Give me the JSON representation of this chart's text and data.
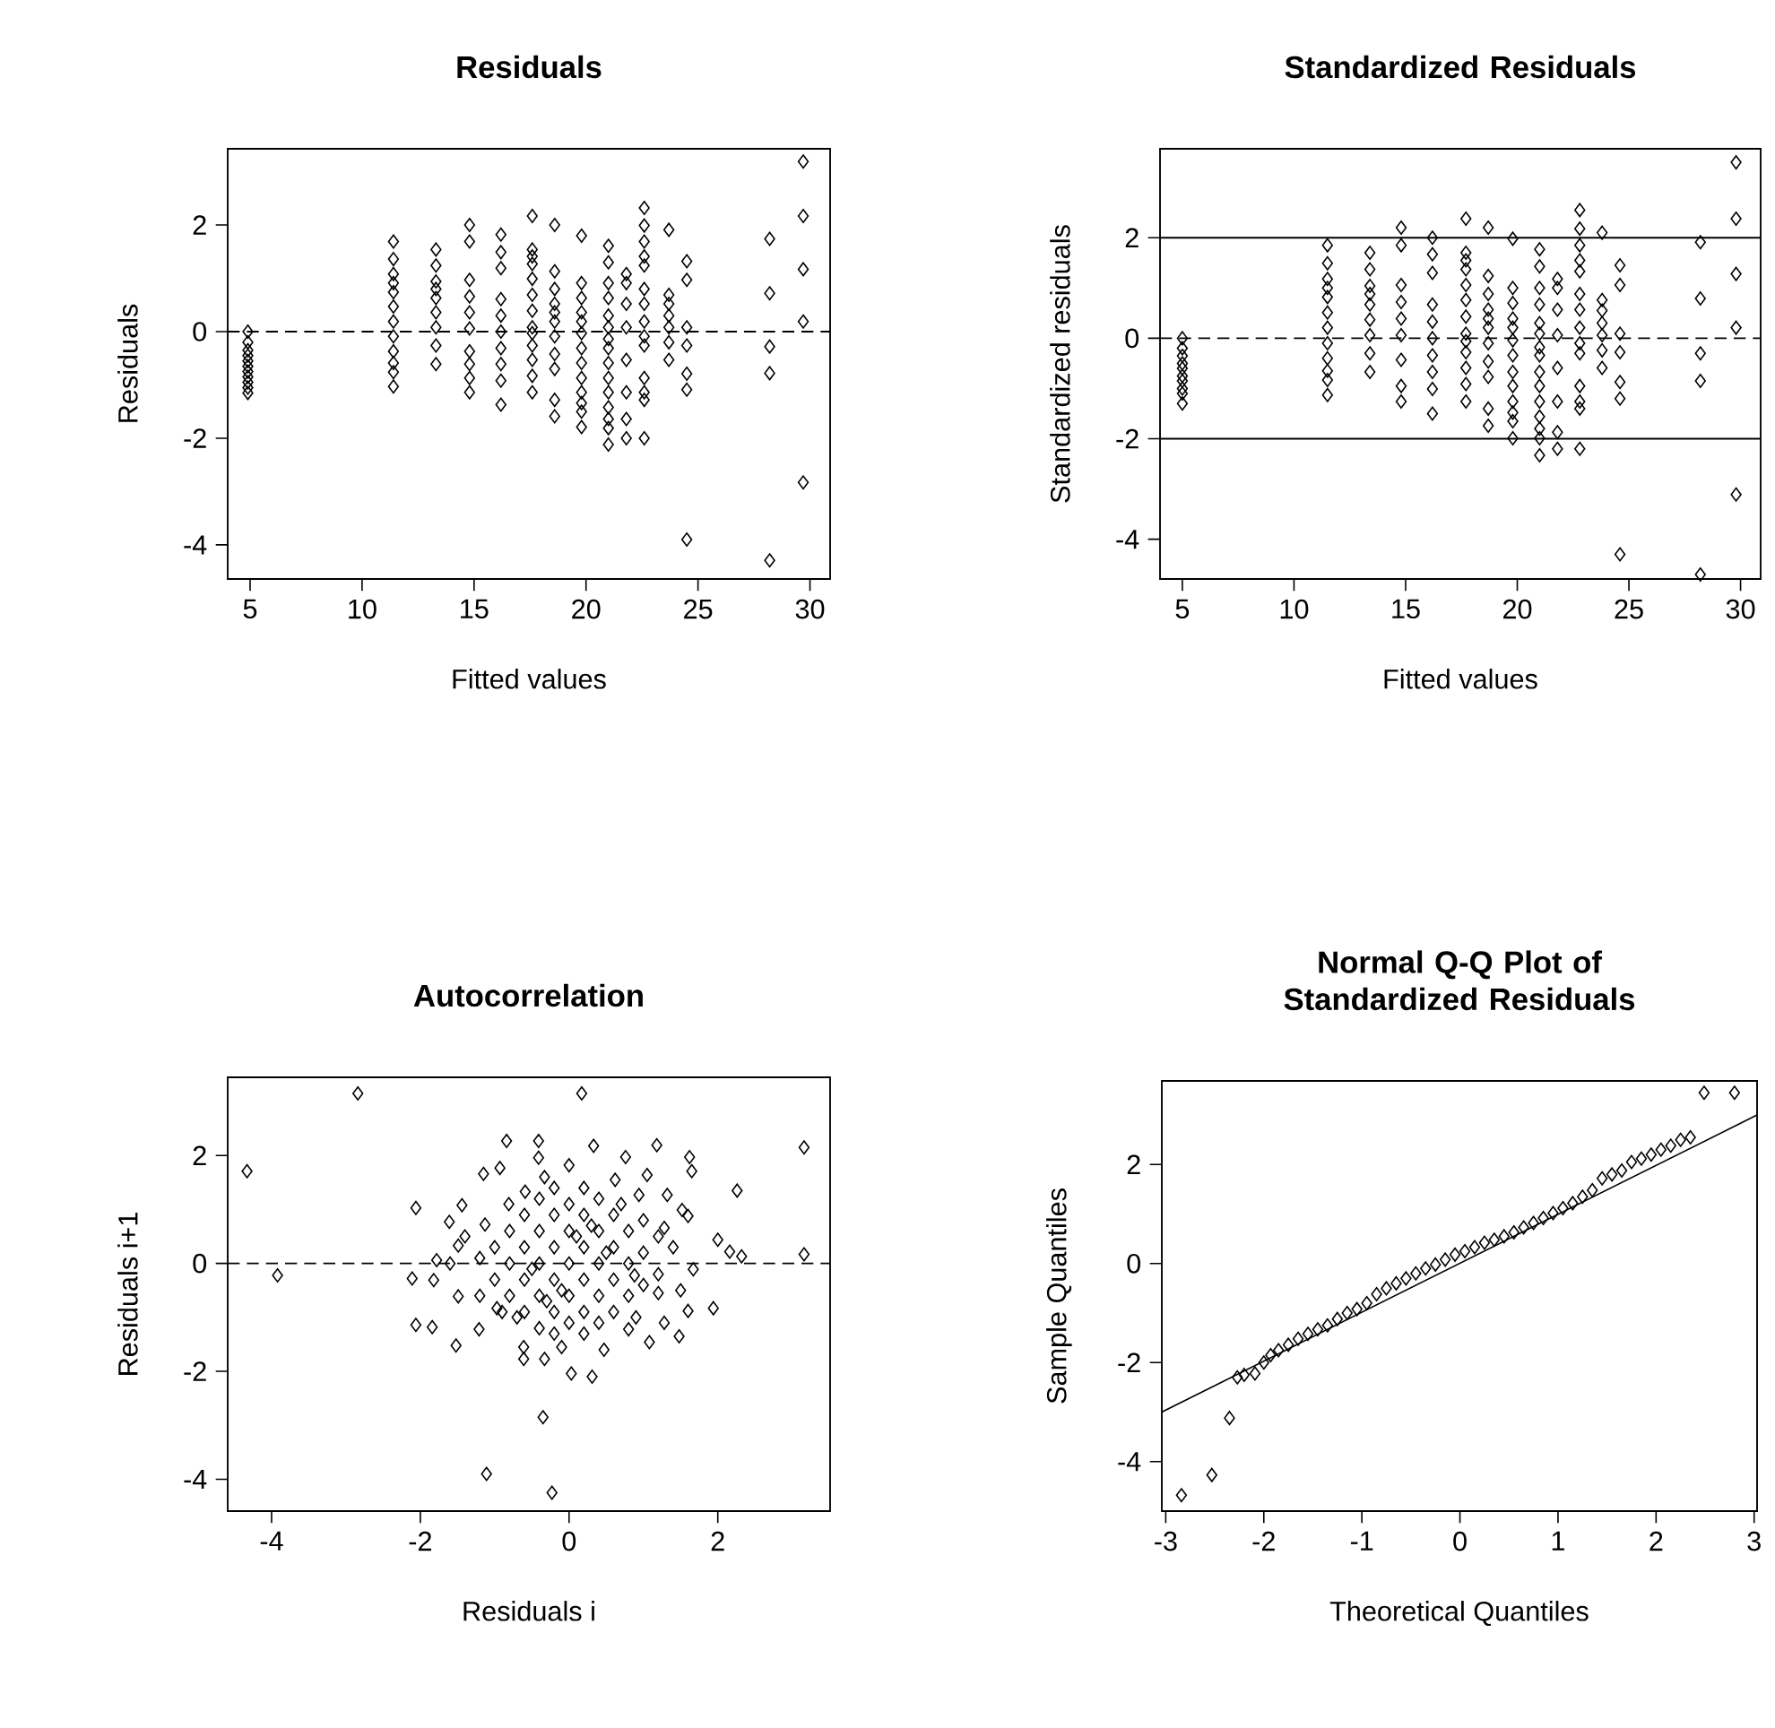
{
  "chart_data": [
    {
      "type": "scatter",
      "title": "Residuals",
      "xlabel": "Fitted values",
      "ylabel": "Residuals",
      "marker": "diamond",
      "xlim": [
        4.0,
        30.9
      ],
      "ylim": [
        -4.64,
        3.43
      ],
      "xticks": [
        5,
        10,
        15,
        20,
        25,
        30
      ],
      "yticks": [
        -4,
        -2,
        0,
        2
      ],
      "ref_lines": [
        {
          "axis": "y",
          "value": 0,
          "line_style": "dashed",
          "color": "#000000"
        }
      ],
      "series": [
        {
          "color": "#000000",
          "x": [
            4.9,
            4.9,
            4.9,
            4.9,
            4.9,
            4.9,
            4.9,
            4.9,
            4.9,
            4.9,
            4.9,
            11.4,
            11.4,
            11.4,
            11.4,
            11.4,
            11.4,
            11.4,
            11.4,
            11.4,
            11.4,
            11.4,
            11.4,
            13.3,
            13.3,
            13.3,
            13.3,
            13.3,
            13.3,
            13.3,
            13.3,
            13.3,
            14.8,
            14.8,
            14.8,
            14.8,
            14.8,
            14.8,
            14.8,
            14.8,
            14.8,
            14.8,
            16.2,
            16.2,
            16.2,
            16.2,
            16.2,
            16.2,
            16.2,
            16.2,
            16.2,
            16.2,
            17.6,
            17.6,
            17.6,
            17.6,
            17.6,
            17.6,
            17.6,
            17.6,
            17.6,
            17.6,
            17.6,
            17.6,
            17.6,
            18.6,
            18.6,
            18.6,
            18.6,
            18.6,
            18.6,
            18.6,
            18.6,
            18.6,
            18.6,
            18.6,
            19.8,
            19.8,
            19.8,
            19.8,
            19.8,
            19.8,
            19.8,
            19.8,
            19.8,
            19.8,
            19.8,
            19.8,
            19.8,
            21.0,
            21.0,
            21.0,
            21.0,
            21.0,
            21.0,
            21.0,
            21.0,
            21.0,
            21.0,
            21.0,
            21.0,
            21.0,
            21.0,
            21.0,
            21.8,
            21.8,
            21.8,
            21.8,
            21.8,
            21.8,
            21.8,
            21.8,
            22.6,
            22.6,
            22.6,
            22.6,
            22.6,
            22.6,
            22.6,
            22.6,
            22.6,
            22.6,
            22.6,
            22.6,
            22.6,
            22.6,
            23.7,
            23.7,
            23.7,
            23.7,
            23.7,
            23.7,
            23.7,
            24.5,
            24.5,
            24.5,
            24.5,
            24.5,
            24.5,
            24.5,
            28.2,
            28.2,
            28.2,
            28.2,
            28.2,
            29.7,
            29.7,
            29.7,
            29.7,
            29.7
          ],
          "values": [
            0,
            -0.2,
            -0.35,
            -0.45,
            -0.55,
            -0.65,
            -0.75,
            -0.85,
            -0.95,
            -1.05,
            -1.15,
            1.69,
            1.36,
            1.08,
            0.91,
            0.74,
            0.47,
            0.19,
            -0.09,
            -0.37,
            -0.59,
            -0.76,
            -1.03,
            1.54,
            1.24,
            0.94,
            0.8,
            0.63,
            0.36,
            0.08,
            -0.26,
            -0.61,
            2.0,
            1.69,
            0.97,
            0.66,
            0.36,
            0.06,
            -0.37,
            -0.61,
            -0.87,
            -1.14,
            1.82,
            1.49,
            1.19,
            0.61,
            0.3,
            0,
            -0.31,
            -0.61,
            -0.92,
            -1.37,
            2.17,
            1.54,
            1.41,
            1.27,
            0.99,
            0.69,
            0.39,
            0.08,
            -0.03,
            -0.26,
            -0.53,
            -0.83,
            -1.14,
            2.0,
            1.13,
            0.8,
            0.52,
            0.36,
            0.19,
            -0.09,
            -0.42,
            -0.7,
            -1.28,
            -1.59,
            1.8,
            0.91,
            0.63,
            0.36,
            0.19,
            -0.03,
            -0.31,
            -0.59,
            -0.87,
            -1.14,
            -1.34,
            -1.5,
            -1.79,
            1.61,
            1.3,
            0.91,
            0.63,
            0.3,
            0.08,
            -0.14,
            -0.31,
            -0.59,
            -0.87,
            -1.14,
            -1.42,
            -1.64,
            -1.81,
            -2.12,
            1.08,
            0.91,
            0.52,
            0.08,
            -0.53,
            -1.14,
            -1.64,
            -2.0,
            2.32,
            1.99,
            1.69,
            1.41,
            1.24,
            0.8,
            0.52,
            0.19,
            -0.09,
            -0.26,
            -0.87,
            -1.14,
            -1.28,
            -2.0,
            1.91,
            0.69,
            0.52,
            0.3,
            0.08,
            -0.2,
            -0.53,
            1.32,
            0.97,
            0.08,
            -0.26,
            -0.79,
            -1.09,
            -3.9,
            1.74,
            0.72,
            -0.28,
            -0.78,
            -4.29,
            3.19,
            2.17,
            1.17,
            0.19,
            -2.83
          ]
        }
      ]
    },
    {
      "type": "scatter",
      "title": "Standardized Residuals",
      "xlabel": "Fitted values",
      "ylabel": "Standardized residuals",
      "marker": "diamond",
      "xlim": [
        4.0,
        30.9
      ],
      "ylim": [
        -4.79,
        3.77
      ],
      "xticks": [
        5,
        10,
        15,
        20,
        25,
        30
      ],
      "yticks": [
        -4,
        -2,
        0,
        2
      ],
      "ref_lines": [
        {
          "axis": "y",
          "value": 0,
          "line_style": "dashed",
          "color": "#000000"
        },
        {
          "axis": "y",
          "value": 2,
          "line_style": "solid",
          "color": "#000000"
        },
        {
          "axis": "y",
          "value": -2,
          "line_style": "solid",
          "color": "#000000"
        }
      ],
      "series": [
        {
          "color": "#000000",
          "x": [
            5.0,
            5.0,
            5.0,
            5.0,
            5.0,
            5.0,
            5.0,
            5.0,
            5.0,
            5.0,
            11.5,
            11.5,
            11.5,
            11.5,
            11.5,
            11.5,
            11.5,
            11.5,
            11.5,
            11.5,
            11.5,
            11.5,
            13.4,
            13.4,
            13.4,
            13.4,
            13.4,
            13.4,
            13.4,
            13.4,
            13.4,
            14.8,
            14.8,
            14.8,
            14.8,
            14.8,
            14.8,
            14.8,
            14.8,
            14.8,
            16.2,
            16.2,
            16.2,
            16.2,
            16.2,
            16.2,
            16.2,
            16.2,
            16.2,
            16.2,
            17.7,
            17.7,
            17.7,
            17.7,
            17.7,
            17.7,
            17.7,
            17.7,
            17.7,
            17.7,
            17.7,
            17.7,
            17.7,
            18.7,
            18.7,
            18.7,
            18.7,
            18.7,
            18.7,
            18.7,
            18.7,
            18.7,
            18.7,
            18.7,
            19.8,
            19.8,
            19.8,
            19.8,
            19.8,
            19.8,
            19.8,
            19.8,
            19.8,
            19.8,
            19.8,
            19.8,
            19.8,
            21.0,
            21.0,
            21.0,
            21.0,
            21.0,
            21.0,
            21.0,
            21.0,
            21.0,
            21.0,
            21.0,
            21.0,
            21.0,
            21.0,
            21.0,
            21.8,
            21.8,
            21.8,
            21.8,
            21.8,
            21.8,
            21.8,
            21.8,
            22.8,
            22.8,
            22.8,
            22.8,
            22.8,
            22.8,
            22.8,
            22.8,
            22.8,
            22.8,
            22.8,
            22.8,
            22.8,
            22.8,
            23.8,
            23.8,
            23.8,
            23.8,
            23.8,
            23.8,
            23.8,
            24.6,
            24.6,
            24.6,
            24.6,
            24.6,
            24.6,
            24.6,
            28.2,
            28.2,
            28.2,
            28.2,
            28.2,
            29.8,
            29.8,
            29.8,
            29.8,
            29.8
          ],
          "values": [
            0,
            -0.2,
            -0.35,
            -0.5,
            -0.6,
            -0.75,
            -0.85,
            -1.0,
            -1.1,
            -1.3,
            1.85,
            1.49,
            1.18,
            1.0,
            0.82,
            0.51,
            0.21,
            -0.1,
            -0.4,
            -0.65,
            -0.83,
            -1.13,
            1.7,
            1.37,
            1.04,
            0.88,
            0.67,
            0.37,
            0.06,
            -0.3,
            -0.67,
            2.2,
            1.85,
            1.06,
            0.72,
            0.39,
            0.06,
            -0.43,
            -0.95,
            -1.26,
            2.0,
            1.67,
            1.3,
            0.67,
            0.33,
            0,
            -0.34,
            -0.67,
            -1.01,
            -1.5,
            2.38,
            1.7,
            1.55,
            1.37,
            1.06,
            0.76,
            0.43,
            0.09,
            -0.06,
            -0.28,
            -0.59,
            -0.91,
            -1.26,
            2.2,
            1.24,
            0.88,
            0.57,
            0.39,
            0.21,
            -0.1,
            -0.46,
            -0.77,
            -1.4,
            -1.74,
            1.98,
            1.0,
            0.7,
            0.39,
            0.21,
            -0.04,
            -0.34,
            -0.67,
            -0.95,
            -1.26,
            -1.48,
            -1.65,
            -1.99,
            1.77,
            1.43,
            1.0,
            0.67,
            0.3,
            0.09,
            -0.18,
            -0.34,
            -0.67,
            -0.95,
            -1.26,
            -1.56,
            -1.8,
            -1.99,
            -2.33,
            1.18,
            1.0,
            0.57,
            0.06,
            -0.59,
            -1.26,
            -1.87,
            -2.2,
            2.55,
            2.18,
            1.85,
            1.55,
            1.33,
            0.88,
            0.57,
            0.21,
            -0.1,
            -0.3,
            -0.95,
            -1.26,
            -1.4,
            -2.2,
            2.1,
            0.76,
            0.55,
            0.3,
            0.06,
            -0.24,
            -0.59,
            1.45,
            1.06,
            0.09,
            -0.28,
            -0.87,
            -1.2,
            -4.3,
            1.91,
            0.79,
            -0.3,
            -0.85,
            -4.7,
            3.5,
            2.38,
            1.28,
            0.21,
            -3.11
          ]
        }
      ]
    },
    {
      "type": "scatter",
      "title": "Autocorrelation",
      "xlabel": "Residuals i",
      "ylabel": "Residuals i+1",
      "marker": "diamond",
      "xlim": [
        -4.59,
        3.51
      ],
      "ylim": [
        -4.59,
        3.45
      ],
      "xticks": [
        -4,
        -2,
        0,
        2
      ],
      "yticks": [
        -4,
        -2,
        0,
        2
      ],
      "ref_lines": [
        {
          "axis": "y",
          "value": 0,
          "line_style": "dashed",
          "color": "#000000"
        }
      ],
      "series": [
        {
          "color": "#000000",
          "x": [
            -4.33,
            -3.92,
            -2.84,
            0.17,
            3.16,
            3.16,
            -0.35,
            -1.11,
            -0.23,
            -2.06,
            -2.11,
            -2.06,
            -1.84,
            -1.52,
            2.26,
            1.94,
            1.65,
            1.62,
            1.18,
            0.76,
            0.33,
            -0.41,
            -0.84,
            -0.41,
            -1.15,
            -0.93,
            -1.61,
            -1.44,
            -1.49,
            -1.82,
            -1.78,
            -1.49,
            1.48,
            1.6,
            1.08,
            0.47,
            0.31,
            0.03,
            -0.1,
            -0.33,
            -0.61,
            -0.61,
            2.16,
            2.32,
            2.0,
            1.67,
            1.6,
            1.52,
            1.32,
            1.05,
            0.94,
            0.62,
            0.0,
            -0.33,
            -0.59,
            -0.81,
            -1.13,
            -1.21,
            -0.97,
            0.8,
            1.28,
            1.2,
            0.88,
            1.28,
            -1.0,
            -1.0,
            -0.8,
            -0.8,
            -0.8,
            -0.6,
            -0.6,
            -0.6,
            -0.6,
            -0.4,
            -0.4,
            -0.4,
            -0.4,
            -0.4,
            -0.2,
            -0.2,
            -0.2,
            -0.2,
            -0.2,
            -0.2,
            0,
            0,
            0,
            0,
            0,
            0.2,
            0.2,
            0.2,
            0.2,
            0.2,
            0.2,
            0.4,
            0.4,
            0.4,
            0.4,
            0.4,
            0.6,
            0.6,
            0.6,
            0.6,
            0.8,
            0.8,
            0.8,
            1.0,
            1.0,
            1.0,
            1.2,
            1.2,
            -1.2,
            -1.2,
            -0.1,
            0.1,
            -0.5,
            0.5,
            -0.3,
            0.3,
            -0.7,
            0.7,
            -0.9,
            0.9,
            1.4,
            1.5,
            -1.4,
            -1.6
          ],
          "values": [
            1.71,
            -0.22,
            3.15,
            3.15,
            2.15,
            0.17,
            -2.85,
            -3.9,
            -4.25,
            1.03,
            -0.28,
            -1.14,
            -1.18,
            -1.52,
            1.35,
            -0.83,
            1.71,
            1.97,
            2.19,
            1.97,
            2.18,
            2.27,
            2.27,
            1.96,
            1.66,
            1.77,
            0.77,
            1.08,
            -0.61,
            -0.31,
            0.06,
            0.33,
            -1.35,
            -0.88,
            -1.46,
            -1.6,
            -2.1,
            -2.04,
            -1.55,
            -1.77,
            -1.77,
            -1.55,
            0.22,
            0.13,
            0.44,
            -0.11,
            0.88,
            0.99,
            1.27,
            1.64,
            1.27,
            1.55,
            1.82,
            1.6,
            1.33,
            1.1,
            0.72,
            -1.22,
            -0.83,
            -1.22,
            -1.1,
            -0.55,
            -0.22,
            0.66,
            0.3,
            -0.3,
            0.6,
            0,
            -0.6,
            0.9,
            0.3,
            -0.3,
            -0.9,
            1.2,
            0.6,
            0,
            -0.6,
            -1.2,
            1.4,
            0.9,
            0.3,
            -0.3,
            -0.9,
            -1.3,
            1.1,
            0.6,
            0,
            -0.6,
            -1.1,
            1.4,
            0.9,
            0.3,
            -0.3,
            -0.9,
            -1.3,
            1.2,
            0.6,
            0,
            -0.6,
            -1.1,
            0.9,
            0.3,
            -0.3,
            -0.9,
            0.6,
            0,
            -0.6,
            0.8,
            0.2,
            -0.4,
            0.5,
            -0.2,
            -0.6,
            0.1,
            -0.5,
            0.5,
            -0.1,
            0.2,
            -0.7,
            0.7,
            -1.0,
            1.1,
            -0.9,
            -1.0,
            0.3,
            -0.5,
            0.5,
            0.0
          ]
        }
      ]
    },
    {
      "type": "scatter",
      "title": "Normal Q-Q Plot of Standardized Residuals",
      "xlabel": "Theoretical Quantiles",
      "ylabel": "Sample Quantiles",
      "marker": "diamond",
      "xlim": [
        -3.04,
        3.03
      ],
      "ylim": [
        -5.0,
        3.69
      ],
      "xticks": [
        -3,
        -2,
        -1,
        0,
        1,
        2,
        3
      ],
      "yticks": [
        -4,
        -2,
        0,
        2
      ],
      "series": [
        {
          "color": "#000000",
          "x": [
            -2.84,
            -2.53,
            -2.35,
            -2.27,
            -2.2,
            -2.09,
            -2.0,
            -1.93,
            -1.85,
            -1.75,
            -1.65,
            -1.55,
            -1.45,
            -1.35,
            -1.25,
            -1.15,
            -1.05,
            -0.95,
            -0.85,
            -0.75,
            -0.65,
            -0.55,
            -0.45,
            -0.35,
            -0.25,
            -0.15,
            -0.05,
            0.05,
            0.15,
            0.25,
            0.35,
            0.45,
            0.55,
            0.65,
            0.75,
            0.85,
            0.95,
            1.05,
            1.15,
            1.25,
            1.35,
            1.45,
            1.55,
            1.65,
            1.75,
            1.85,
            1.95,
            2.05,
            2.15,
            2.25,
            2.35,
            2.49,
            2.8
          ],
          "values": [
            -4.68,
            -4.27,
            -3.12,
            -2.3,
            -2.25,
            -2.22,
            -2.0,
            -1.85,
            -1.75,
            -1.64,
            -1.52,
            -1.42,
            -1.33,
            -1.25,
            -1.12,
            -1.0,
            -0.92,
            -0.8,
            -0.62,
            -0.5,
            -0.4,
            -0.3,
            -0.2,
            -0.1,
            -0.02,
            0.08,
            0.18,
            0.25,
            0.33,
            0.42,
            0.48,
            0.55,
            0.63,
            0.73,
            0.82,
            0.92,
            1.02,
            1.12,
            1.22,
            1.35,
            1.48,
            1.72,
            1.8,
            1.88,
            2.05,
            2.12,
            2.2,
            2.3,
            2.38,
            2.5,
            2.55,
            3.45,
            3.45
          ]
        },
        {
          "type": "line",
          "marker": "none",
          "color": "#000000",
          "x": [
            -3.04,
            3.03
          ],
          "values": [
            -3.0,
            3.0
          ]
        }
      ]
    }
  ]
}
